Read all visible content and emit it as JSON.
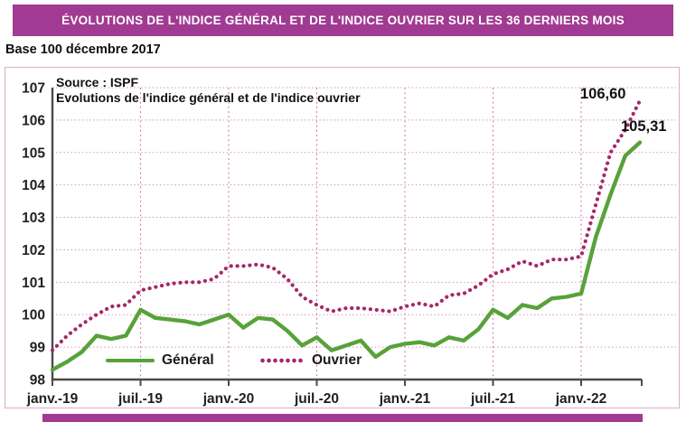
{
  "header": {
    "title": "ÉVOLUTIONS DE L'INDICE GÉNÉRAL ET DE L'INDICE OUVRIER SUR LES 36 DERNIERS MOIS"
  },
  "subtitle": "Base 100 décembre 2017",
  "chart_data": {
    "type": "line",
    "source": "Source : ISPF",
    "title": "Evolutions de l'indice général et de l'indice ouvrier",
    "x_tick_labels": [
      "janv.-19",
      "juil.-19",
      "janv.-20",
      "juil.-20",
      "janv.-21",
      "juil.-21",
      "janv.-22"
    ],
    "points_per_tick": 6,
    "n_points": 41,
    "ylim": [
      98,
      107
    ],
    "y_ticks": [
      98,
      99,
      100,
      101,
      102,
      103,
      104,
      105,
      106,
      107
    ],
    "grid": true,
    "legend_position": "bottom-inside",
    "series": [
      {
        "name": "Général",
        "style": "solid",
        "color": "#57a23a",
        "end_label": "105,31",
        "values": [
          98.3,
          98.55,
          98.85,
          99.35,
          99.25,
          99.35,
          100.15,
          99.9,
          99.85,
          99.8,
          99.7,
          99.85,
          100.0,
          99.6,
          99.9,
          99.85,
          99.5,
          99.05,
          99.3,
          98.9,
          99.05,
          99.2,
          98.7,
          99.0,
          99.1,
          99.15,
          99.05,
          99.3,
          99.2,
          99.55,
          100.15,
          99.9,
          100.3,
          100.2,
          100.5,
          100.55,
          100.65,
          102.4,
          103.7,
          104.9,
          105.31
        ]
      },
      {
        "name": "Ouvrier",
        "style": "dotted",
        "color": "#a62768",
        "end_label": "106,60",
        "values": [
          98.9,
          99.35,
          99.7,
          100.0,
          100.25,
          100.3,
          100.75,
          100.85,
          100.95,
          101.0,
          101.0,
          101.1,
          101.5,
          101.5,
          101.55,
          101.45,
          101.1,
          100.55,
          100.3,
          100.1,
          100.2,
          100.2,
          100.15,
          100.1,
          100.25,
          100.35,
          100.25,
          100.6,
          100.65,
          100.9,
          101.25,
          101.4,
          101.65,
          101.5,
          101.7,
          101.7,
          101.8,
          103.4,
          105.0,
          105.7,
          106.6
        ]
      }
    ]
  },
  "colors": {
    "banner_bg": "#a13a92",
    "banner_text": "#ffffff",
    "chart_border": "#dcadcd",
    "grid_pink": "#d795ba",
    "axis_gray": "#4a4a4a",
    "tick_text": "#1f1f1f",
    "general_green": "#57a23a",
    "ouvrier_magenta": "#a62768"
  }
}
